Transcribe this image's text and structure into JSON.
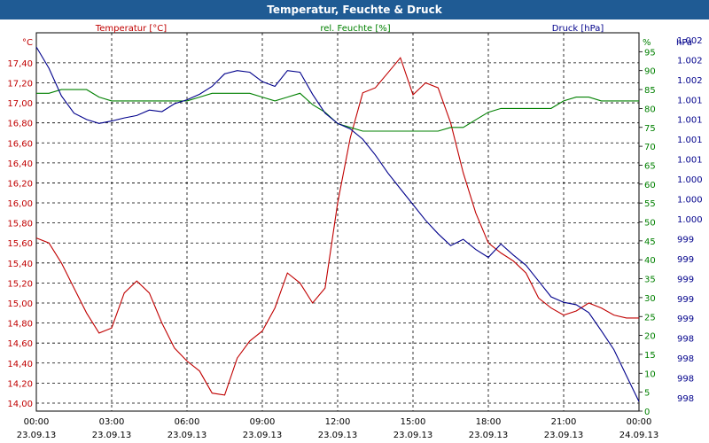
{
  "chart_data": {
    "type": "line",
    "title": "Temperatur, Feuchte & Druck",
    "x": [
      "00:00",
      "00:30",
      "01:00",
      "01:30",
      "02:00",
      "02:30",
      "03:00",
      "03:30",
      "04:00",
      "04:30",
      "05:00",
      "05:30",
      "06:00",
      "06:30",
      "07:00",
      "07:30",
      "08:00",
      "08:30",
      "09:00",
      "09:30",
      "10:00",
      "10:30",
      "11:00",
      "11:30",
      "12:00",
      "12:30",
      "13:00",
      "13:30",
      "14:00",
      "14:30",
      "15:00",
      "15:30",
      "16:00",
      "16:30",
      "17:00",
      "17:30",
      "18:00",
      "18:30",
      "19:00",
      "19:30",
      "20:00",
      "20:30",
      "21:00",
      "21:30",
      "22:00",
      "22:30",
      "23:00",
      "23:30",
      "24:00"
    ],
    "x_tick_labels": [
      {
        "time": "00:00",
        "date": "23.09.13"
      },
      {
        "time": "03:00",
        "date": "23.09.13"
      },
      {
        "time": "06:00",
        "date": "23.09.13"
      },
      {
        "time": "09:00",
        "date": "23.09.13"
      },
      {
        "time": "12:00",
        "date": "23.09.13"
      },
      {
        "time": "15:00",
        "date": "23.09.13"
      },
      {
        "time": "18:00",
        "date": "23.09.13"
      },
      {
        "time": "21:00",
        "date": "23.09.13"
      },
      {
        "time": "00:00",
        "date": "24.09.13"
      }
    ],
    "axes": {
      "temperature": {
        "unit": "°C",
        "label": "Temperatur [°C]",
        "range": [
          13.92,
          17.7
        ],
        "color": "#c00000",
        "ticks": [
          "14,00",
          "14,20",
          "14,40",
          "14,60",
          "14,80",
          "15,00",
          "15,20",
          "15,40",
          "15,60",
          "15,80",
          "16,00",
          "16,20",
          "16,40",
          "16,60",
          "16,80",
          "17,00",
          "17,20",
          "17,40"
        ]
      },
      "humidity": {
        "unit": "%",
        "label": "rel. Feuchte [%]",
        "range": [
          0,
          100
        ],
        "color": "#008000",
        "ticks": [
          "0",
          "5",
          "10",
          "15",
          "20",
          "25",
          "30",
          "35",
          "40",
          "45",
          "50",
          "55",
          "60",
          "65",
          "70",
          "75",
          "80",
          "85",
          "90",
          "95"
        ]
      },
      "pressure": {
        "unit": "hPa",
        "label": "Druck [hPa]",
        "range": [
          997.6,
          1002.4
        ],
        "color": "#00008b",
        "ticks": [
          "998",
          "998",
          "998",
          "998",
          "999",
          "999",
          "999",
          "999",
          "999",
          "1.000",
          "1.000",
          "1.000",
          "1.001",
          "1.001",
          "1.001",
          "1.001",
          "1.002",
          "1.002",
          "1.002"
        ]
      }
    },
    "series": [
      {
        "name": "Temperatur [°C]",
        "axis": "temperature",
        "color": "#c00000",
        "values": [
          15.65,
          15.6,
          15.4,
          15.15,
          14.9,
          14.7,
          14.75,
          15.1,
          15.22,
          15.1,
          14.8,
          14.55,
          14.42,
          14.32,
          14.1,
          14.08,
          14.45,
          14.62,
          14.72,
          14.95,
          15.3,
          15.2,
          15.0,
          15.15,
          16.0,
          16.65,
          17.1,
          17.15,
          17.3,
          17.45,
          17.08,
          17.2,
          17.15,
          16.8,
          16.3,
          15.9,
          15.6,
          15.5,
          15.42,
          15.3,
          15.05,
          14.95,
          14.88,
          14.92,
          15.0,
          14.95,
          14.88,
          14.85,
          14.85
        ]
      },
      {
        "name": "rel. Feuchte [%]",
        "axis": "humidity",
        "color": "#008000",
        "values": [
          84,
          84,
          85,
          85,
          85,
          83,
          82,
          82,
          82,
          82,
          82,
          82,
          82,
          83,
          84,
          84,
          84,
          84,
          83,
          82,
          83,
          84,
          81,
          79,
          76,
          75,
          74,
          74,
          74,
          74,
          74,
          74,
          74,
          75,
          75,
          77,
          79,
          80,
          80,
          80,
          80,
          80,
          82,
          83,
          83,
          82,
          82,
          82,
          82
        ]
      },
      {
        "name": "Druck [hPa]",
        "axis": "pressure",
        "color": "#00008b",
        "values": [
          1002.22,
          1001.95,
          1001.6,
          1001.38,
          1001.3,
          1001.25,
          1001.28,
          1001.32,
          1001.35,
          1001.42,
          1001.4,
          1001.5,
          1001.55,
          1001.62,
          1001.72,
          1001.88,
          1001.92,
          1001.9,
          1001.78,
          1001.72,
          1001.92,
          1001.9,
          1001.62,
          1001.38,
          1001.25,
          1001.18,
          1001.05,
          1000.85,
          1000.62,
          1000.42,
          1000.22,
          1000.02,
          999.85,
          999.7,
          999.78,
          999.65,
          999.55,
          999.72,
          999.58,
          999.45,
          999.25,
          999.05,
          998.98,
          998.95,
          998.85,
          998.62,
          998.38,
          998.05,
          997.72
        ]
      }
    ]
  }
}
